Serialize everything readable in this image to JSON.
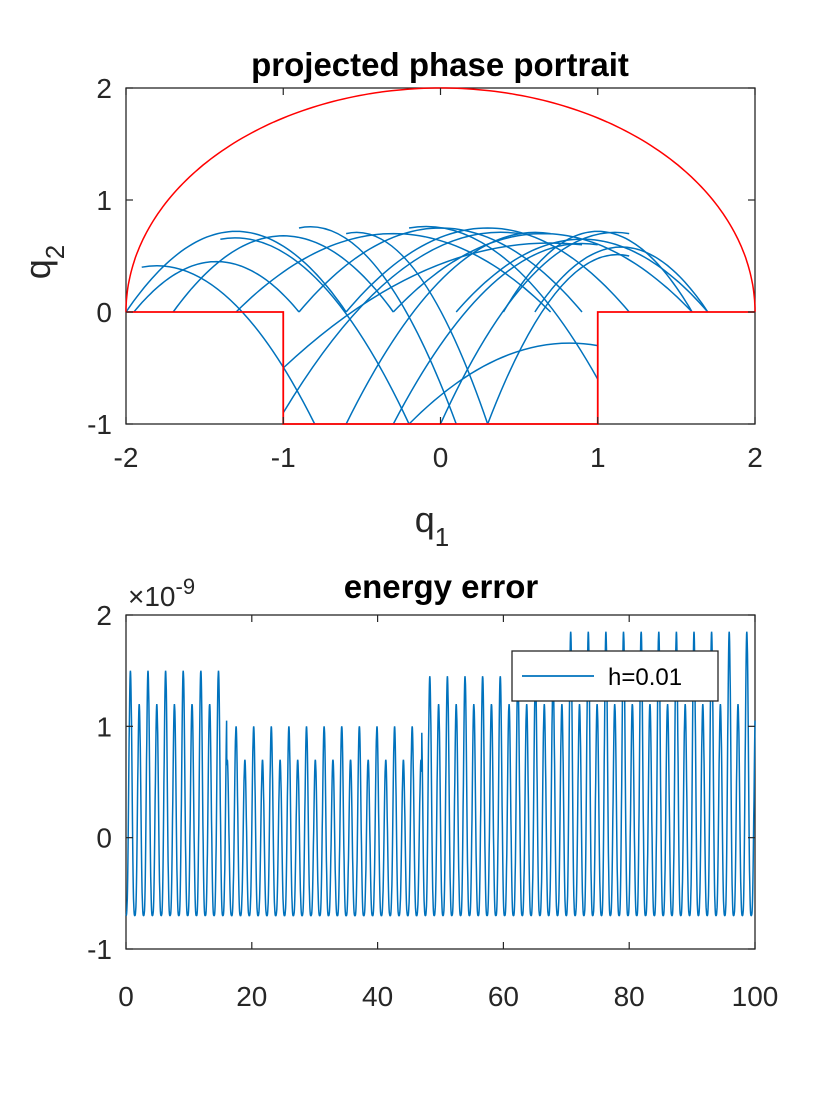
{
  "chart_data": [
    {
      "type": "line",
      "title": "projected phase portrait",
      "xlabel": "q",
      "xlabel_sub": "1",
      "ylabel": "q",
      "ylabel_sub": "2",
      "xlim": [
        -2,
        2
      ],
      "ylim": [
        -1,
        2
      ],
      "xticks": [
        "-2",
        "-1",
        "0",
        "1",
        "2"
      ],
      "yticks": [
        "-1",
        "0",
        "1",
        "2"
      ],
      "boundary_color": "#ff0000",
      "trajectory_color": "#0072bd",
      "series": [
        {
          "role": "boundary-top-semicircle",
          "equation": "q1^2 + q2^2 = 4, q2 >= 0"
        },
        {
          "role": "boundary-bottom",
          "x": [
            -2,
            -1,
            -1,
            1,
            1,
            2
          ],
          "y": [
            0,
            0,
            -1,
            -1,
            0,
            0
          ]
        },
        {
          "role": "trajectory",
          "description_arcs": [
            {
              "x0": -2.0,
              "x1": -0.6,
              "apex": 0.72
            },
            {
              "x0": -1.95,
              "x1": -0.9,
              "apex": 0.45
            },
            {
              "x0": -1.7,
              "x1": -0.3,
              "apex": 0.68
            },
            {
              "x0": -1.3,
              "x1": 0.7,
              "apex": 0.7
            },
            {
              "x0": -0.9,
              "x1": 0.9,
              "apex": 0.75
            },
            {
              "x0": -0.6,
              "x1": 1.2,
              "apex": 0.75
            },
            {
              "x0": -0.3,
              "x1": 1.6,
              "apex": 0.7
            },
            {
              "x0": 0.1,
              "x1": 1.7,
              "apex": 0.65
            },
            {
              "x0": 0.4,
              "x1": 1.6,
              "apex": 0.72
            },
            {
              "x0": 0.6,
              "x1": 1.7,
              "apex": 0.58
            }
          ]
        }
      ]
    },
    {
      "type": "line",
      "title": "energy error",
      "exponent_label": "×10",
      "exponent_power": "-9",
      "xlim": [
        0,
        100
      ],
      "ylim": [
        -1,
        2
      ],
      "xticks": [
        "0",
        "20",
        "40",
        "60",
        "80",
        "100"
      ],
      "yticks": [
        "-1",
        "0",
        "1",
        "2"
      ],
      "legend": "top-right",
      "series": [
        {
          "name": "h=0.01",
          "color": "#0072bd",
          "oscillation_period": 1.4,
          "trough": -0.7,
          "segments": [
            {
              "x_from": 0,
              "x_to": 16,
              "peaks_high": 1.5,
              "peaks_low": 1.2
            },
            {
              "x_from": 16,
              "x_to": 47,
              "peaks_high": 1.0,
              "peaks_low": 0.7
            },
            {
              "x_from": 47,
              "x_to": 70,
              "peaks_high": 1.45,
              "peaks_low": 1.2
            },
            {
              "x_from": 70,
              "x_to": 100,
              "peaks_high": 1.85,
              "peaks_low": 1.2
            }
          ]
        }
      ]
    }
  ]
}
